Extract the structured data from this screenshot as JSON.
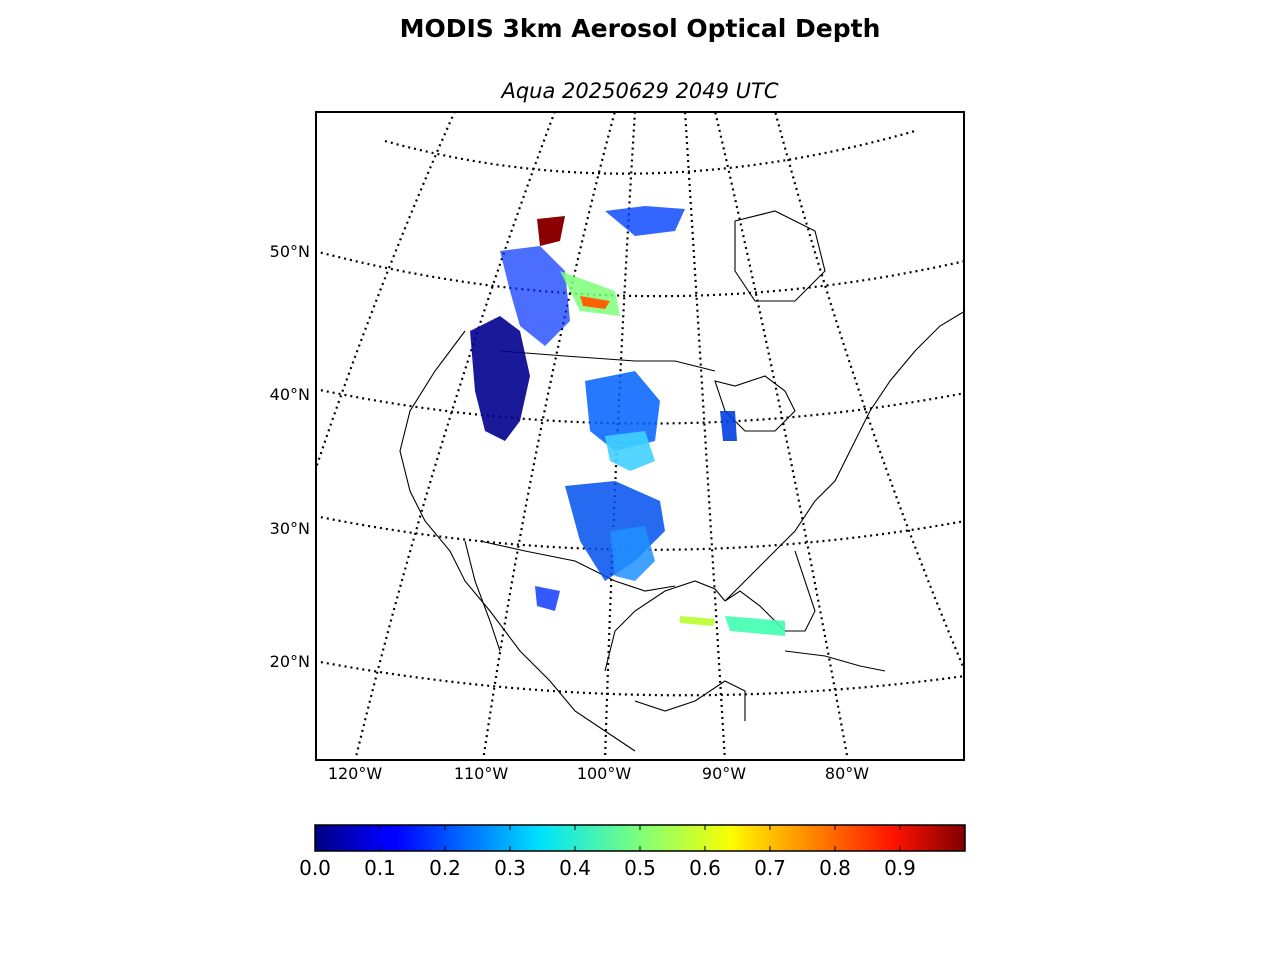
{
  "title": "MODIS 3km Aerosol Optical Depth",
  "subtitle": "Aqua 20250629 2049 UTC",
  "lat_labels": [
    "50°N",
    "40°N",
    "30°N",
    "20°N"
  ],
  "lon_labels": [
    "120°W",
    "110°W",
    "100°W",
    "90°W",
    "80°W"
  ],
  "colorbar": {
    "ticks": [
      "0.0",
      "0.1",
      "0.2",
      "0.3",
      "0.4",
      "0.5",
      "0.6",
      "0.7",
      "0.8",
      "0.9"
    ],
    "range": [
      0.0,
      1.0
    ],
    "colormap": "jet"
  },
  "colors": {
    "low": "#00007f",
    "mid": "#40ffb7",
    "high": "#7f0000",
    "coastline": "#000000",
    "graticule": "#000000"
  }
}
